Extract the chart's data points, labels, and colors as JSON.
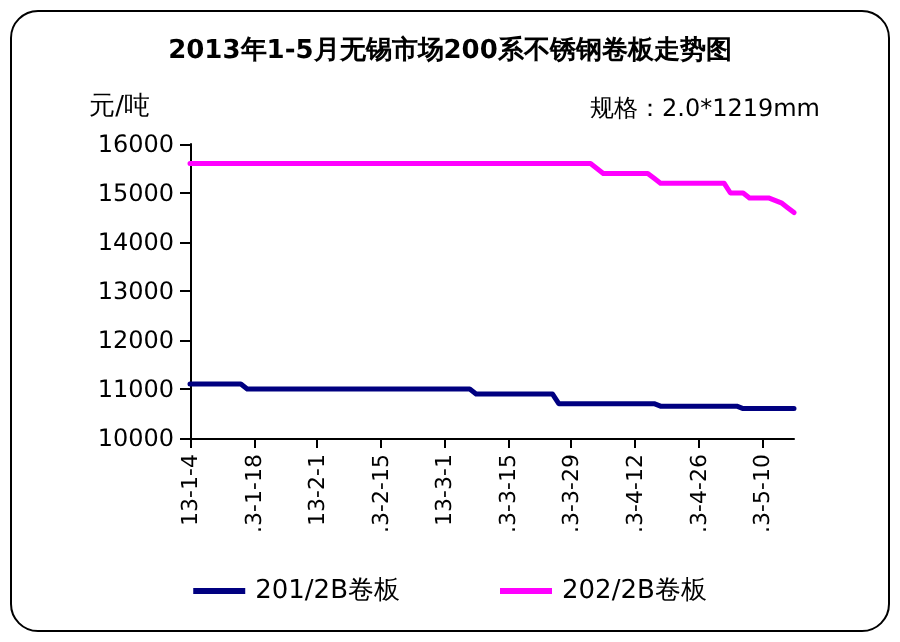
{
  "chart_data": {
    "type": "line",
    "title": "2013年1-5月无锡市场200系不锈钢卷板走势图",
    "ylabel": "元/吨",
    "annotations": [
      "规格：2.0*1219mm"
    ],
    "categories": [
      "13-1-4",
      null,
      null,
      null,
      null,
      null,
      null,
      null,
      null,
      null,
      ".3-1-18",
      null,
      null,
      null,
      null,
      null,
      null,
      null,
      null,
      null,
      "13-2-1",
      null,
      null,
      null,
      null,
      null,
      null,
      null,
      null,
      null,
      ".3-2-15",
      null,
      null,
      null,
      null,
      null,
      null,
      null,
      null,
      null,
      "13-3-1",
      null,
      null,
      null,
      null,
      null,
      null,
      null,
      null,
      null,
      ".3-3-15",
      null,
      null,
      null,
      null,
      null,
      null,
      null,
      null,
      null,
      ".3-3-29",
      null,
      null,
      null,
      null,
      null,
      null,
      null,
      null,
      null,
      ".3-4-12",
      null,
      null,
      null,
      null,
      null,
      null,
      null,
      null,
      null,
      ".3-4-26",
      null,
      null,
      null,
      null,
      null,
      null,
      null,
      null,
      null,
      ".3-5-10",
      null,
      null,
      null,
      null,
      null
    ],
    "series": [
      {
        "name": "201/2B卷板",
        "color": "#000080",
        "values": [
          11100,
          11100,
          11100,
          11100,
          11100,
          11100,
          11100,
          11100,
          11100,
          11000,
          11000,
          11000,
          11000,
          11000,
          11000,
          11000,
          11000,
          11000,
          11000,
          11000,
          11000,
          11000,
          11000,
          11000,
          11000,
          11000,
          11000,
          11000,
          11000,
          11000,
          11000,
          11000,
          11000,
          11000,
          11000,
          11000,
          11000,
          11000,
          11000,
          11000,
          11000,
          11000,
          11000,
          11000,
          11000,
          10900,
          10900,
          10900,
          10900,
          10900,
          10900,
          10900,
          10900,
          10900,
          10900,
          10900,
          10900,
          10900,
          10700,
          10700,
          10700,
          10700,
          10700,
          10700,
          10700,
          10700,
          10700,
          10700,
          10700,
          10700,
          10700,
          10700,
          10700,
          10700,
          10650,
          10650,
          10650,
          10650,
          10650,
          10650,
          10650,
          10650,
          10650,
          10650,
          10650,
          10650,
          10650,
          10600,
          10600,
          10600,
          10600,
          10600,
          10600,
          10600,
          10600,
          10600
        ]
      },
      {
        "name": "202/2B卷板",
        "color": "#ff00ff",
        "values": [
          15600,
          15600,
          15600,
          15600,
          15600,
          15600,
          15600,
          15600,
          15600,
          15600,
          15600,
          15600,
          15600,
          15600,
          15600,
          15600,
          15600,
          15600,
          15600,
          15600,
          15600,
          15600,
          15600,
          15600,
          15600,
          15600,
          15600,
          15600,
          15600,
          15600,
          15600,
          15600,
          15600,
          15600,
          15600,
          15600,
          15600,
          15600,
          15600,
          15600,
          15600,
          15600,
          15600,
          15600,
          15600,
          15600,
          15600,
          15600,
          15600,
          15600,
          15600,
          15600,
          15600,
          15600,
          15600,
          15600,
          15600,
          15600,
          15600,
          15600,
          15600,
          15600,
          15600,
          15600,
          15500,
          15400,
          15400,
          15400,
          15400,
          15400,
          15400,
          15400,
          15400,
          15300,
          15200,
          15200,
          15200,
          15200,
          15200,
          15200,
          15200,
          15200,
          15200,
          15200,
          15200,
          15000,
          15000,
          15000,
          14900,
          14900,
          14900,
          14900,
          14850,
          14800,
          14700,
          14600
        ]
      }
    ],
    "ylim": [
      10000,
      16000
    ],
    "yticks": [
      10000,
      11000,
      12000,
      13000,
      14000,
      15000,
      16000
    ],
    "grid": false,
    "legend": "bottom",
    "marker": "none",
    "line_style": "solid"
  }
}
